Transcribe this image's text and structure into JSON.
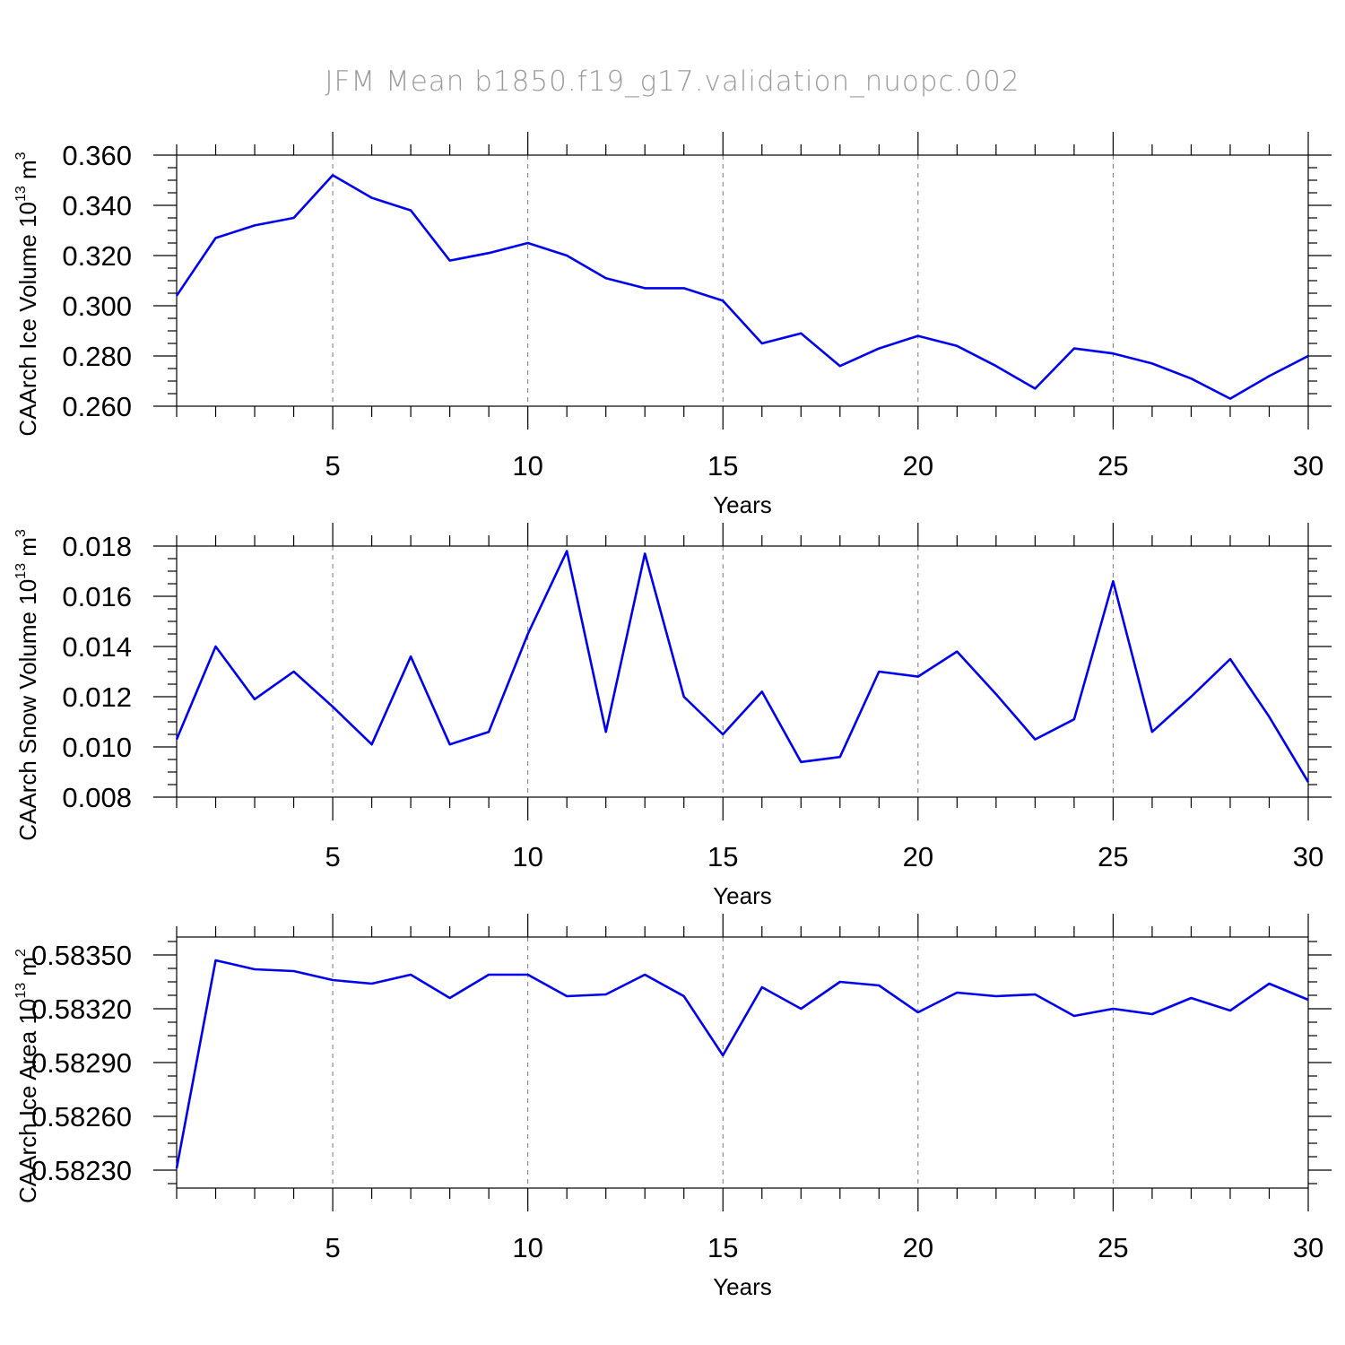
{
  "title": "JFM Mean b1850.f19_g17.validation_nuopc.002",
  "chart_data": [
    {
      "type": "line",
      "title": "",
      "xlabel": "Years",
      "ylabel_text": "CAArch Ice Volume 10",
      "ylabel_exp1": "13",
      "ylabel_unit": " m",
      "ylabel_exp2": "3",
      "xlim": [
        1,
        30
      ],
      "ylim": [
        0.26,
        0.36
      ],
      "xticks": [
        5,
        10,
        15,
        20,
        25,
        30
      ],
      "yticks": [
        0.26,
        0.28,
        0.3,
        0.32,
        0.34,
        0.36
      ],
      "ytick_labels": [
        "0.260",
        "0.280",
        "0.300",
        "0.320",
        "0.340",
        "0.360"
      ],
      "grid": true,
      "series": [
        {
          "color": "#0000ee",
          "x": [
            1,
            2,
            3,
            4,
            5,
            6,
            7,
            8,
            9,
            10,
            11,
            12,
            13,
            14,
            15,
            16,
            17,
            18,
            19,
            20,
            21,
            22,
            23,
            24,
            25,
            26,
            27,
            28,
            29,
            30
          ],
          "y": [
            0.304,
            0.327,
            0.332,
            0.335,
            0.352,
            0.343,
            0.338,
            0.318,
            0.321,
            0.325,
            0.32,
            0.311,
            0.307,
            0.307,
            0.302,
            0.285,
            0.289,
            0.276,
            0.283,
            0.288,
            0.284,
            0.276,
            0.267,
            0.283,
            0.281,
            0.277,
            0.271,
            0.263,
            0.272,
            0.28
          ]
        }
      ]
    },
    {
      "type": "line",
      "title": "",
      "xlabel": "Years",
      "ylabel_text": "CAArch Snow Volume 10",
      "ylabel_exp1": "13",
      "ylabel_unit": " m",
      "ylabel_exp2": "3",
      "xlim": [
        1,
        30
      ],
      "ylim": [
        0.008,
        0.018
      ],
      "xticks": [
        5,
        10,
        15,
        20,
        25,
        30
      ],
      "yticks": [
        0.008,
        0.01,
        0.012,
        0.014,
        0.016,
        0.018
      ],
      "ytick_labels": [
        "0.008",
        "0.010",
        "0.012",
        "0.014",
        "0.016",
        "0.018"
      ],
      "grid": true,
      "series": [
        {
          "color": "#0000ee",
          "x": [
            1,
            2,
            3,
            4,
            5,
            6,
            7,
            8,
            9,
            10,
            11,
            12,
            13,
            14,
            15,
            16,
            17,
            18,
            19,
            20,
            21,
            22,
            23,
            24,
            25,
            26,
            27,
            28,
            29,
            30
          ],
          "y": [
            0.0103,
            0.014,
            0.0119,
            0.013,
            0.0116,
            0.0101,
            0.0136,
            0.0101,
            0.0106,
            0.0145,
            0.0178,
            0.0106,
            0.0177,
            0.012,
            0.0105,
            0.0122,
            0.0094,
            0.0096,
            0.013,
            0.0128,
            0.0138,
            0.0121,
            0.0103,
            0.0111,
            0.0166,
            0.0106,
            0.012,
            0.0135,
            0.0112,
            0.0086
          ]
        }
      ]
    },
    {
      "type": "line",
      "title": "",
      "xlabel": "Years",
      "ylabel_text": "CAArch Ice Area 10",
      "ylabel_exp1": "13",
      "ylabel_unit": " m",
      "ylabel_exp2": "2",
      "xlim": [
        1,
        30
      ],
      "ylim": [
        0.5822,
        0.5836
      ],
      "xticks": [
        5,
        10,
        15,
        20,
        25,
        30
      ],
      "yticks": [
        0.5823,
        0.5826,
        0.5829,
        0.5832,
        0.5835
      ],
      "ytick_labels": [
        "0.58230",
        "0.58260",
        "0.58290",
        "0.58320",
        "0.58350"
      ],
      "grid": true,
      "series": [
        {
          "color": "#0000ee",
          "x": [
            1,
            2,
            3,
            4,
            5,
            6,
            7,
            8,
            9,
            10,
            11,
            12,
            13,
            14,
            15,
            16,
            17,
            18,
            19,
            20,
            21,
            22,
            23,
            24,
            25,
            26,
            27,
            28,
            29,
            30
          ],
          "y": [
            0.58231,
            0.58347,
            0.58342,
            0.58341,
            0.58336,
            0.58334,
            0.58339,
            0.58326,
            0.58339,
            0.58339,
            0.58327,
            0.58328,
            0.58339,
            0.58327,
            0.58294,
            0.58332,
            0.5832,
            0.58335,
            0.58333,
            0.58318,
            0.58329,
            0.58327,
            0.58328,
            0.58316,
            0.5832,
            0.58317,
            0.58326,
            0.58319,
            0.58334,
            0.58325
          ]
        }
      ]
    }
  ]
}
